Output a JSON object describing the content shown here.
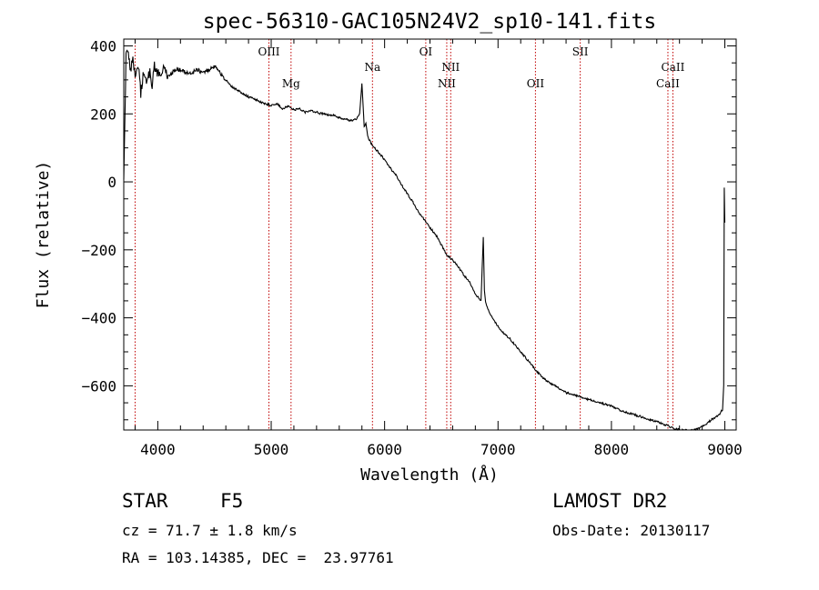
{
  "chart_data": {
    "type": "line",
    "title": "spec-56310-GAC105N24V2_sp10-141.fits",
    "xlabel": "Wavelength (Å)",
    "ylabel": "Flux (relative)",
    "xlim": [
      3700,
      9100
    ],
    "ylim": [
      -730,
      420
    ],
    "xticks": [
      4000,
      5000,
      6000,
      7000,
      8000,
      9000
    ],
    "yticks": [
      -600,
      -400,
      -200,
      0,
      200,
      400
    ],
    "series": [
      {
        "x": [
          3700,
          3720,
          3740,
          3760,
          3780,
          3800,
          3830,
          3850,
          3870,
          3900,
          3930,
          3950,
          3970,
          4000,
          4050,
          4100,
          4150,
          4200,
          4250,
          4300,
          4350,
          4400,
          4450,
          4500,
          4550,
          4600,
          4650,
          4700,
          4750,
          4800,
          4850,
          4900,
          4950,
          5000,
          5050,
          5100,
          5150,
          5200,
          5250,
          5300,
          5350,
          5400,
          5450,
          5500,
          5550,
          5600,
          5650,
          5700,
          5750,
          5780,
          5800,
          5810,
          5820,
          5835,
          5850,
          5870,
          5900,
          5950,
          6000,
          6050,
          6100,
          6150,
          6200,
          6250,
          6300,
          6350,
          6400,
          6450,
          6500,
          6550,
          6600,
          6650,
          6700,
          6750,
          6800,
          6850,
          6870,
          6880,
          6890,
          6900,
          6950,
          7000,
          7050,
          7100,
          7150,
          7200,
          7250,
          7300,
          7350,
          7400,
          7450,
          7500,
          7600,
          7700,
          7800,
          7900,
          8000,
          8100,
          8200,
          8300,
          8400,
          8500,
          8600,
          8700,
          8750,
          8800,
          8850,
          8900,
          8950,
          8980,
          8990,
          8995,
          9000
        ],
        "y": [
          0,
          380,
          370,
          330,
          360,
          320,
          340,
          260,
          310,
          300,
          320,
          280,
          340,
          320,
          330,
          310,
          330,
          330,
          320,
          320,
          330,
          320,
          330,
          340,
          320,
          300,
          280,
          270,
          260,
          250,
          245,
          235,
          230,
          225,
          230,
          215,
          222,
          212,
          215,
          205,
          210,
          205,
          200,
          198,
          195,
          188,
          185,
          180,
          185,
          200,
          290,
          225,
          160,
          170,
          135,
          120,
          105,
          85,
          65,
          40,
          20,
          -10,
          -35,
          -60,
          -90,
          -110,
          -135,
          -155,
          -185,
          -215,
          -230,
          -250,
          -275,
          -295,
          -330,
          -350,
          -160,
          -320,
          -350,
          -365,
          -400,
          -425,
          -445,
          -460,
          -480,
          -500,
          -520,
          -540,
          -560,
          -578,
          -590,
          -600,
          -620,
          -630,
          -640,
          -650,
          -660,
          -675,
          -685,
          -695,
          -705,
          -718,
          -730,
          -732,
          -728,
          -720,
          -708,
          -695,
          -685,
          -670,
          -600,
          -20,
          -120
        ]
      }
    ],
    "annotations": [
      {
        "label": "OIII",
        "x": 4980,
        "row": "top"
      },
      {
        "label": "Mg",
        "x": 5175,
        "row": "low"
      },
      {
        "label": "Na",
        "x": 5893,
        "row": "mid"
      },
      {
        "label": "OI",
        "x": 6363,
        "row": "top"
      },
      {
        "label": "NII",
        "x": 6548,
        "row": "low"
      },
      {
        "label": "NII",
        "x": 6583,
        "row": "mid"
      },
      {
        "label": "OII",
        "x": 7330,
        "row": "low"
      },
      {
        "label": "SII",
        "x": 7725,
        "row": "top"
      },
      {
        "label": "CaII",
        "x": 8498,
        "row": "low"
      },
      {
        "label": "CaII",
        "x": 8542,
        "row": "mid"
      }
    ],
    "marker_lines_x": [
      3800,
      4980,
      5175,
      5893,
      6363,
      6548,
      6583,
      7330,
      7725,
      8498,
      8542
    ],
    "grid": false,
    "line_color": "#000000",
    "marker_color": "#c00000"
  },
  "info": {
    "object_class": "STAR",
    "subclass": "F5",
    "survey": "LAMOST DR2",
    "redshift": "cz = 71.7 ± 1.8 km/s",
    "obs_date": "Obs-Date: 20130117",
    "coordinates": "RA = 103.14385, DEC =  23.97761"
  }
}
